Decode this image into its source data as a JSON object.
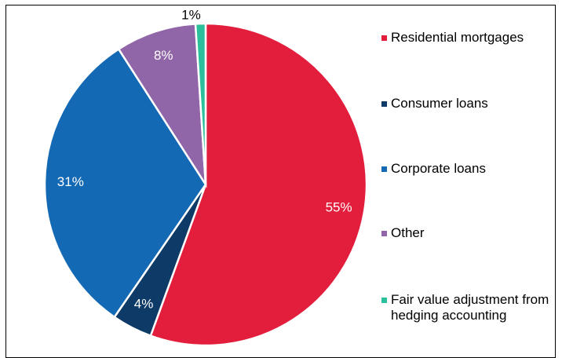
{
  "chart_data": {
    "type": "pie",
    "categories": [
      "Residential mortgages",
      "Consumer loans",
      "Corporate loans",
      "Other",
      "Fair value adjustment from hedging accounting"
    ],
    "values": [
      55,
      4,
      31,
      8,
      1
    ],
    "value_labels": [
      "55%",
      "4%",
      "31%",
      "8%",
      "1%"
    ],
    "colors": [
      "#e31d3c",
      "#0d3a66",
      "#1469b4",
      "#9166a8",
      "#2bbf9c"
    ],
    "legend": "right"
  }
}
